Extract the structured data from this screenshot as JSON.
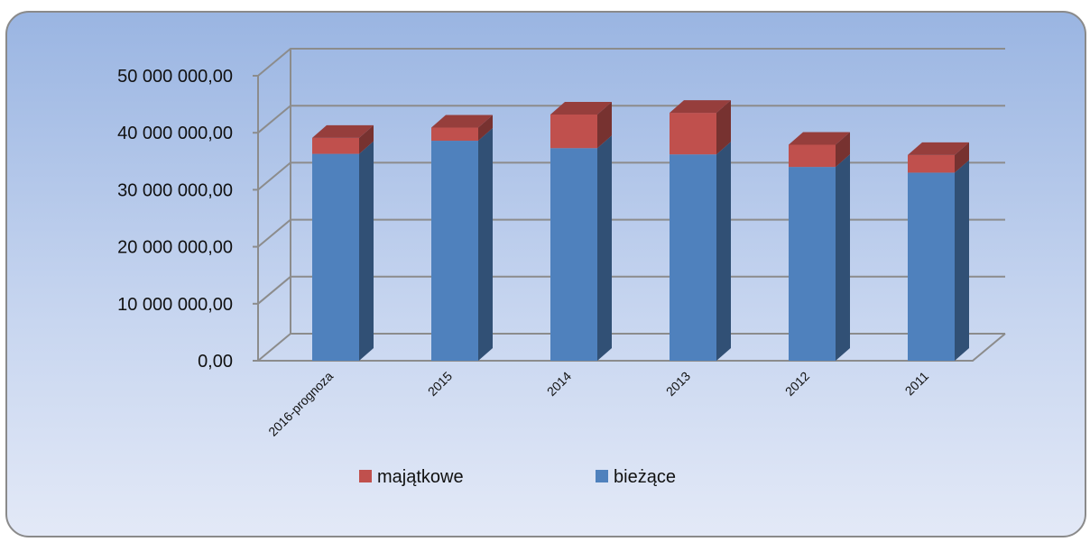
{
  "chart_data": {
    "type": "bar",
    "stacked": true,
    "three_d": true,
    "categories": [
      "2016-prognoza",
      "2015",
      "2014",
      "2013",
      "2012",
      "2011"
    ],
    "series": [
      {
        "name": "bieżące",
        "color": "#4f81bd",
        "values": [
          36300000,
          38600000,
          37300000,
          36200000,
          34000000,
          33000000
        ]
      },
      {
        "name": "majątkowe",
        "color": "#c0504d",
        "values": [
          2800000,
          2300000,
          5900000,
          7300000,
          3900000,
          3100000
        ]
      }
    ],
    "ylim": [
      0,
      50000000
    ],
    "yticks": [
      "0,00",
      "10 000 000,00",
      "20 000 000,00",
      "30 000 000,00",
      "40 000 000,00",
      "50 000 000,00"
    ],
    "grid": true,
    "legend": "bottom",
    "legend_order": [
      "majątkowe",
      "bieżące"
    ]
  }
}
